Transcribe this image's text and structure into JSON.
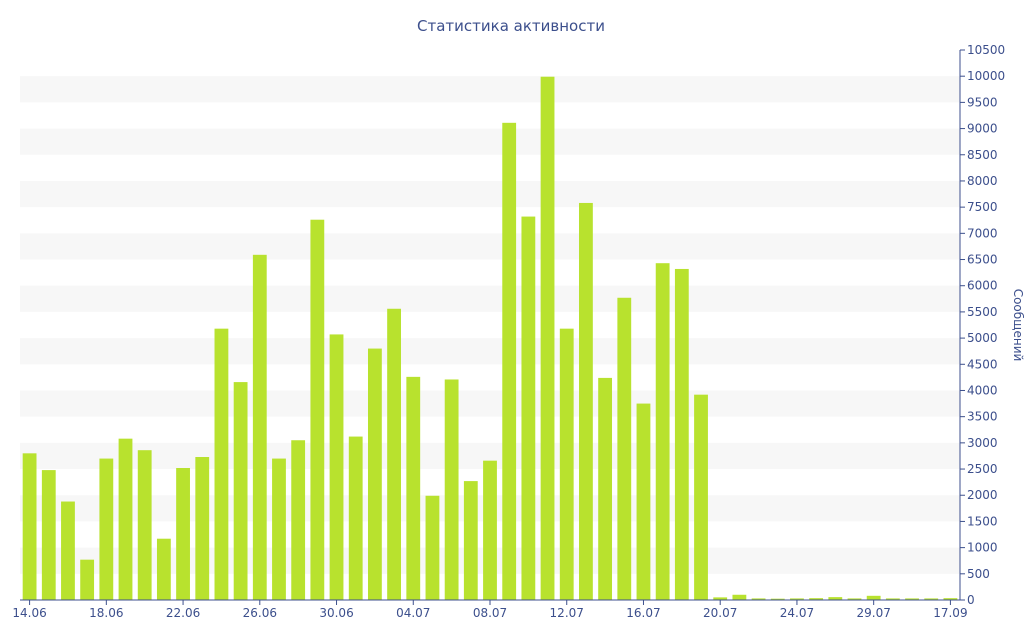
{
  "chart_data": {
    "type": "bar",
    "title": "Статистика активности",
    "xlabel": "",
    "ylabel": "Сообщений",
    "y_axis_side": "right",
    "ylim": [
      0,
      10500
    ],
    "y_ticks": [
      0,
      500,
      1000,
      1500,
      2000,
      2500,
      3000,
      3500,
      4000,
      4500,
      5000,
      5500,
      6000,
      6500,
      7000,
      7500,
      8000,
      8500,
      9000,
      9500,
      10000,
      10500
    ],
    "grid": "alternating horizontal bands",
    "x_ticks": [
      {
        "label": "14.06",
        "index": 0
      },
      {
        "label": "18.06",
        "index": 4
      },
      {
        "label": "22.06",
        "index": 8
      },
      {
        "label": "26.06",
        "index": 12
      },
      {
        "label": "30.06",
        "index": 16
      },
      {
        "label": "04.07",
        "index": 20
      },
      {
        "label": "08.07",
        "index": 24
      },
      {
        "label": "12.07",
        "index": 28
      },
      {
        "label": "16.07",
        "index": 32
      },
      {
        "label": "20.07",
        "index": 36
      },
      {
        "label": "24.07",
        "index": 40
      },
      {
        "label": "29.07",
        "index": 44
      },
      {
        "label": "17.09",
        "index": 48
      }
    ],
    "values": [
      2800,
      2480,
      1880,
      770,
      2700,
      3080,
      2860,
      1170,
      2520,
      2730,
      5180,
      4160,
      6590,
      2700,
      3050,
      7260,
      5070,
      3120,
      4800,
      5560,
      4260,
      1990,
      4210,
      2270,
      2660,
      9110,
      7320,
      9990,
      5180,
      7580,
      4240,
      5770,
      3750,
      6430,
      6320,
      3920,
      50,
      100,
      30,
      25,
      30,
      35,
      55,
      30,
      80,
      30,
      30,
      30,
      35
    ],
    "bar_color": "#b8e22e",
    "band_color": "#f7f7f7",
    "text_color": "#3c4f8c"
  }
}
